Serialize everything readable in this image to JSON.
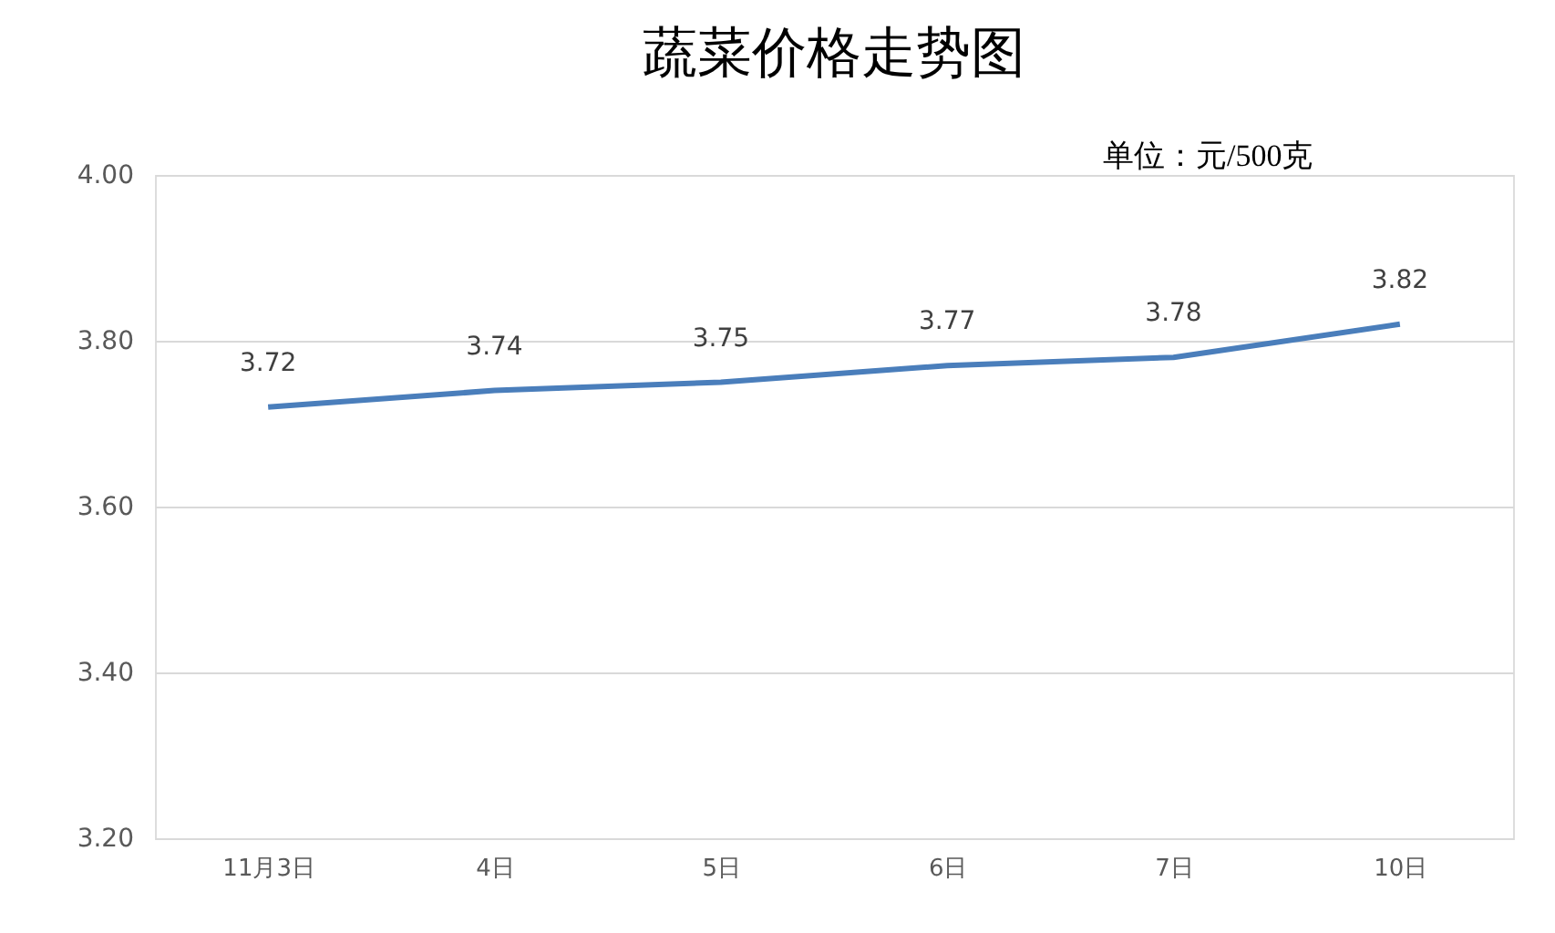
{
  "chart_data": {
    "type": "line",
    "title": "蔬菜价格走势图",
    "annotations": [
      "单位：元/500克"
    ],
    "categories": [
      "11月3日",
      "4日",
      "5日",
      "6日",
      "7日",
      "10日"
    ],
    "series": [
      {
        "color": "#4a7ebb",
        "values": [
          3.72,
          3.74,
          3.75,
          3.77,
          3.78,
          3.82
        ]
      }
    ],
    "ylim": [
      3.2,
      4.0
    ],
    "yticks": [
      {
        "value": 3.2,
        "label": "3.20"
      },
      {
        "value": 3.4,
        "label": "3.40"
      },
      {
        "value": 3.6,
        "label": "3.60"
      },
      {
        "value": 3.8,
        "label": "3.80"
      },
      {
        "value": 4.0,
        "label": "4.00"
      }
    ],
    "grid": "y",
    "data_labels": true,
    "marker": "none",
    "line_style": "solid"
  }
}
